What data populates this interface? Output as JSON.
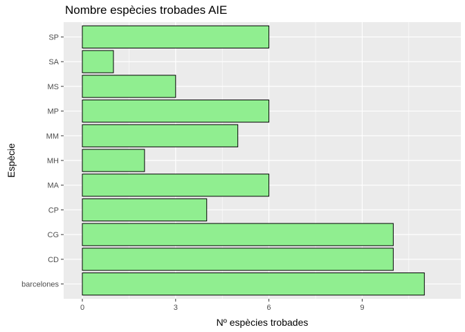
{
  "chart_data": {
    "type": "bar",
    "orientation": "horizontal",
    "title": "Nombre espècies trobades AIE",
    "xlabel": "Nº espècies trobades",
    "ylabel": "Espècie",
    "categories": [
      "barcelones",
      "CD",
      "CG",
      "CP",
      "MA",
      "MH",
      "MM",
      "MP",
      "MS",
      "SA",
      "SP"
    ],
    "values": [
      11,
      10,
      10,
      4,
      6,
      2,
      5,
      6,
      3,
      1,
      6
    ],
    "xlim": [
      0,
      11.55
    ],
    "x_ticks": [
      0,
      3,
      6,
      9
    ],
    "grid": true,
    "colors": {
      "panel": "#ebebeb",
      "grid_major": "#ffffff",
      "bar_fill": "#90ee90",
      "bar_stroke": "#000000"
    }
  }
}
